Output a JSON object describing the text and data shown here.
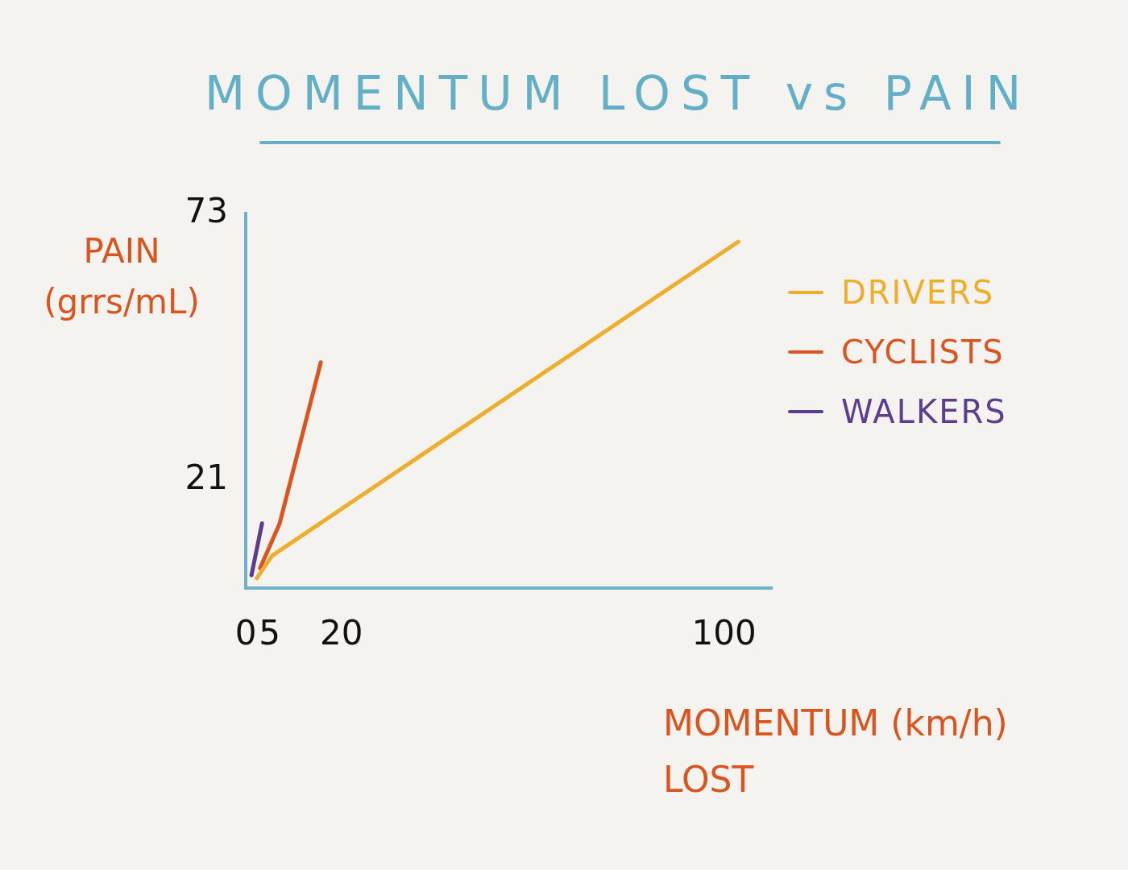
{
  "chart_data": {
    "type": "line",
    "title": "MOMENTUM LOST vs PAIN",
    "xlabel": "MOMENTUM (km/h) LOST",
    "ylabel": "PAIN (grrs/mL)",
    "xlim": [
      0,
      110
    ],
    "xticks": [
      0,
      5,
      20,
      100
    ],
    "ylim": [
      0,
      73
    ],
    "yticks": [
      21,
      73
    ],
    "legend": "right",
    "series": [
      {
        "name": "DRIVERS",
        "color": "#eeae2c",
        "x": [
          2.3,
          5.5,
          103
        ],
        "values": [
          1.9,
          6.3,
          67.5
        ]
      },
      {
        "name": "CYCLISTS",
        "color": "#d9541e",
        "x": [
          3.0,
          7.1,
          15.7
        ],
        "values": [
          3.9,
          12.6,
          44
        ]
      },
      {
        "name": "WALKERS",
        "color": "#5c3d8e",
        "x": [
          1.2,
          3.4
        ],
        "values": [
          2.5,
          12.6
        ]
      }
    ]
  }
}
